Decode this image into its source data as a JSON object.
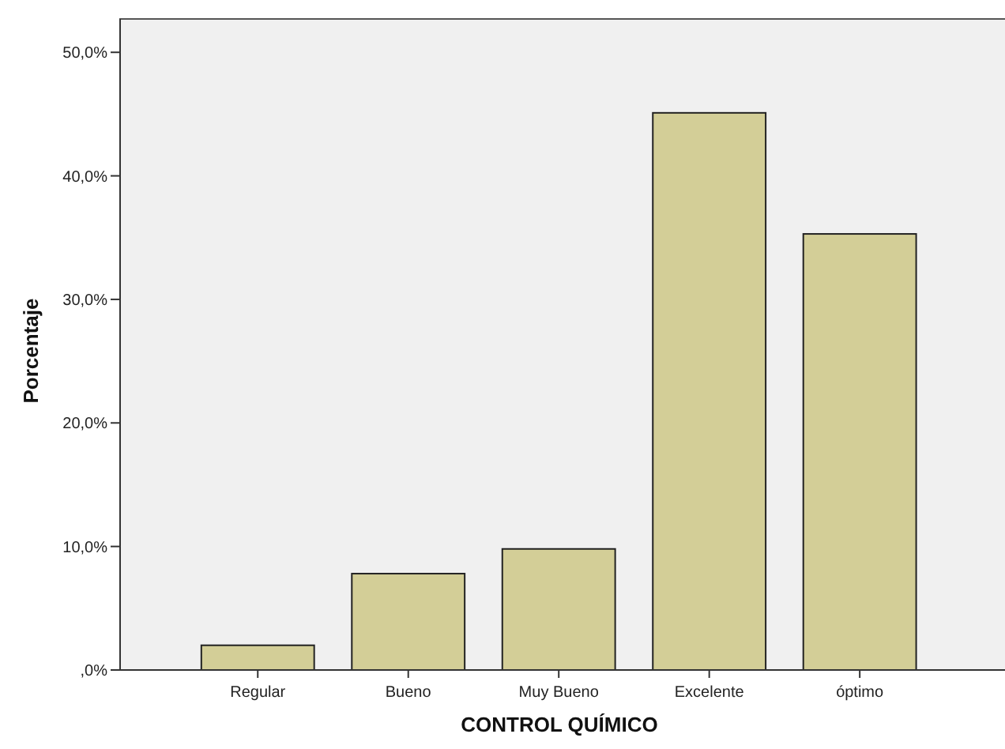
{
  "chart_data": {
    "type": "bar",
    "xlabel": "CONTROL QUÍMICO",
    "ylabel": "Porcentaje",
    "categories": [
      "Regular",
      "Bueno",
      "Muy Bueno",
      "Excelente",
      "óptimo"
    ],
    "values": [
      2.0,
      7.8,
      9.8,
      45.1,
      35.3
    ],
    "color": "#d3ce97",
    "ylim": [
      0,
      52.7
    ],
    "yticks": [
      {
        "value": 0,
        "label": ",0%"
      },
      {
        "value": 10,
        "label": "10,0%"
      },
      {
        "value": 20,
        "label": "20,0%"
      },
      {
        "value": 30,
        "label": "30,0%"
      },
      {
        "value": 40,
        "label": "40,0%"
      },
      {
        "value": 50,
        "label": "50,0%"
      }
    ],
    "grid": false
  }
}
